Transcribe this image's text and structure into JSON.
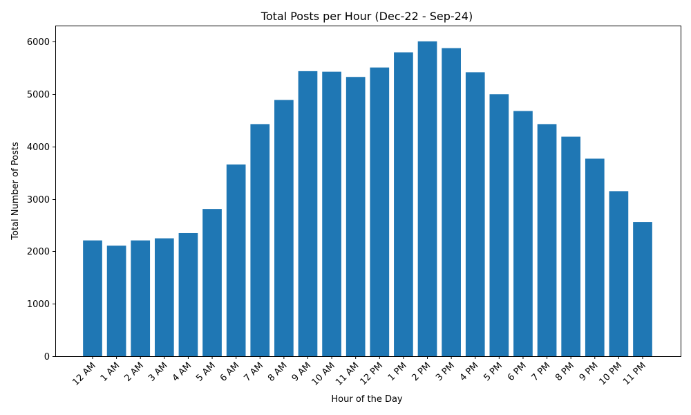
{
  "chart_data": {
    "type": "bar",
    "title": "Total Posts per Hour (Dec-22 - Sep-24)",
    "xlabel": "Hour of the Day",
    "ylabel": "Total Number of Posts",
    "categories": [
      "12 AM",
      "1 AM",
      "2 AM",
      "3 AM",
      "4 AM",
      "5 AM",
      "6 AM",
      "7 AM",
      "8 AM",
      "9 AM",
      "10 AM",
      "11 AM",
      "12 PM",
      "1 PM",
      "2 PM",
      "3 PM",
      "4 PM",
      "5 PM",
      "6 PM",
      "7 PM",
      "8 PM",
      "9 PM",
      "10 PM",
      "11 PM"
    ],
    "values": [
      2210,
      2110,
      2210,
      2250,
      2350,
      2810,
      3660,
      4430,
      4890,
      5440,
      5430,
      5330,
      5510,
      5800,
      6010,
      5880,
      5420,
      5000,
      4680,
      4430,
      4190,
      3770,
      3150,
      2560
    ],
    "yticks": [
      0,
      1000,
      2000,
      3000,
      4000,
      5000,
      6000
    ],
    "ylim": [
      0,
      6310
    ],
    "grid": false,
    "bar_color": "#1f77b4"
  }
}
